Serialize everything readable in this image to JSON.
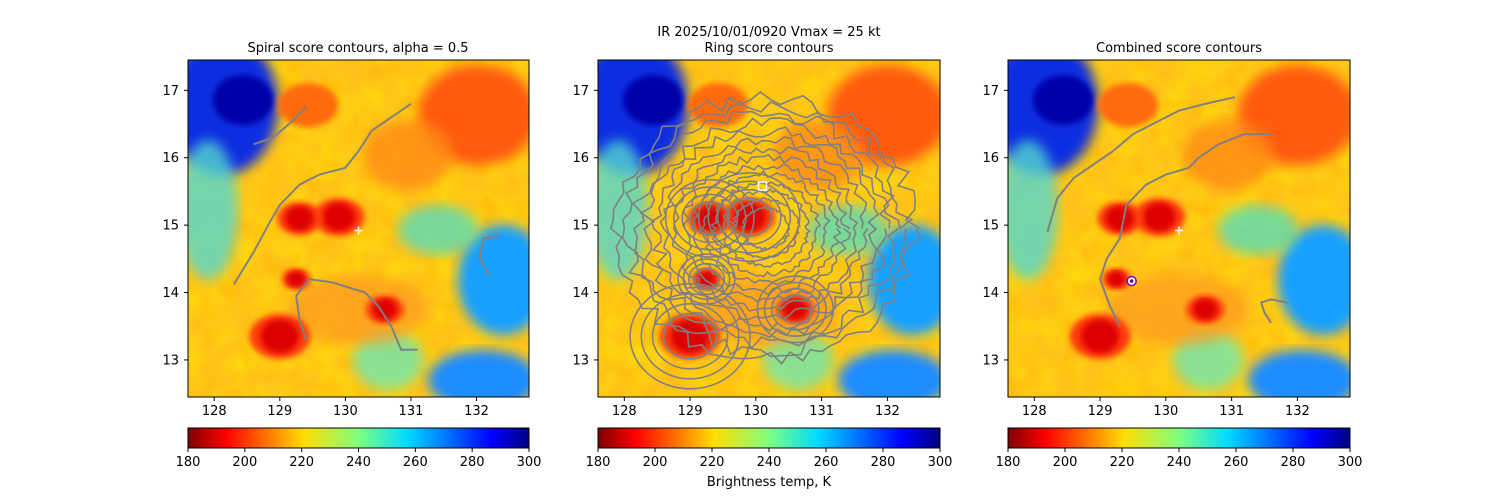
{
  "figure": {
    "suptitle": "IR  2025/10/01/0920    Vmax = 25 kt",
    "colorbar_label": "Brightness temp, K"
  },
  "chart_data": [
    {
      "type": "heatmap",
      "title": "Spiral score contours, alpha =  0.5",
      "x_ticks": [
        128,
        129,
        130,
        131,
        132
      ],
      "y_ticks": [
        13,
        14,
        15,
        16,
        17
      ],
      "xlim": [
        127.6,
        132.8
      ],
      "ylim": [
        12.45,
        17.45
      ],
      "marker": {
        "kind": "plus",
        "lon": 130.2,
        "lat": 14.92
      },
      "contours": [
        [
          [
            128.6,
            16.2
          ],
          [
            128.9,
            16.3
          ],
          [
            129.2,
            16.55
          ],
          [
            129.4,
            16.75
          ]
        ],
        [
          [
            128.3,
            14.12
          ],
          [
            128.6,
            14.6
          ],
          [
            128.85,
            15.05
          ],
          [
            129.0,
            15.3
          ],
          [
            129.3,
            15.6
          ],
          [
            129.6,
            15.75
          ],
          [
            130.0,
            15.85
          ],
          [
            130.2,
            16.1
          ],
          [
            130.4,
            16.4
          ],
          [
            130.7,
            16.6
          ],
          [
            131.0,
            16.8
          ]
        ],
        [
          [
            129.4,
            13.3
          ],
          [
            129.3,
            13.6
          ],
          [
            129.25,
            13.95
          ],
          [
            129.45,
            14.2
          ],
          [
            129.8,
            14.15
          ],
          [
            130.3,
            14.0
          ],
          [
            130.5,
            13.8
          ],
          [
            130.7,
            13.5
          ],
          [
            130.85,
            13.15
          ],
          [
            131.1,
            13.15
          ]
        ],
        [
          [
            132.35,
            14.85
          ],
          [
            132.1,
            14.8
          ],
          [
            132.05,
            14.5
          ],
          [
            132.2,
            14.25
          ]
        ]
      ],
      "cold_cores": [
        {
          "lon": 129.9,
          "lat": 15.12,
          "size": 0.32
        },
        {
          "lon": 129.3,
          "lat": 15.1,
          "size": 0.28
        },
        {
          "lon": 130.6,
          "lat": 13.75,
          "size": 0.24
        },
        {
          "lon": 129.0,
          "lat": 13.35,
          "size": 0.38
        },
        {
          "lon": 129.25,
          "lat": 14.2,
          "size": 0.18
        }
      ]
    },
    {
      "type": "heatmap",
      "title": "Ring score contours",
      "x_ticks": [
        128,
        129,
        130,
        131,
        132
      ],
      "y_ticks": [
        13,
        14,
        15,
        16,
        17
      ],
      "xlim": [
        127.6,
        132.8
      ],
      "ylim": [
        12.45,
        17.45
      ],
      "marker": {
        "kind": "square",
        "lon": 130.1,
        "lat": 15.58
      },
      "ring": {
        "lon": 130.15,
        "lat": 14.95,
        "r_lon": 2.25,
        "r_lat": 1.95
      },
      "cold_cores": [
        {
          "lon": 129.9,
          "lat": 15.12,
          "size": 0.32
        },
        {
          "lon": 129.3,
          "lat": 15.1,
          "size": 0.28
        },
        {
          "lon": 130.6,
          "lat": 13.75,
          "size": 0.24
        },
        {
          "lon": 129.0,
          "lat": 13.35,
          "size": 0.38
        },
        {
          "lon": 129.25,
          "lat": 14.2,
          "size": 0.18
        }
      ]
    },
    {
      "type": "heatmap",
      "title": "Combined score contours",
      "x_ticks": [
        128,
        129,
        130,
        131,
        132
      ],
      "y_ticks": [
        13,
        14,
        15,
        16,
        17
      ],
      "xlim": [
        127.6,
        132.8
      ],
      "ylim": [
        12.45,
        17.45
      ],
      "marker": {
        "kind": "plus",
        "lon": 130.2,
        "lat": 14.92
      },
      "marker2": {
        "kind": "circle",
        "lon": 129.48,
        "lat": 14.17
      },
      "contours": [
        [
          [
            128.2,
            14.9
          ],
          [
            128.35,
            15.4
          ],
          [
            128.6,
            15.7
          ],
          [
            128.9,
            15.9
          ],
          [
            129.2,
            16.1
          ],
          [
            129.5,
            16.35
          ],
          [
            129.8,
            16.5
          ],
          [
            130.2,
            16.7
          ],
          [
            130.6,
            16.8
          ],
          [
            131.05,
            16.9
          ]
        ],
        [
          [
            129.3,
            13.5
          ],
          [
            129.15,
            13.8
          ],
          [
            129.0,
            14.2
          ],
          [
            129.1,
            14.5
          ],
          [
            129.3,
            14.8
          ],
          [
            129.4,
            15.3
          ],
          [
            129.7,
            15.6
          ],
          [
            130.0,
            15.75
          ],
          [
            130.35,
            15.85
          ],
          [
            130.5,
            16.0
          ],
          [
            130.8,
            16.2
          ],
          [
            131.2,
            16.35
          ],
          [
            131.6,
            16.35
          ]
        ],
        [
          [
            131.6,
            13.55
          ],
          [
            131.5,
            13.7
          ],
          [
            131.45,
            13.85
          ],
          [
            131.6,
            13.9
          ],
          [
            131.85,
            13.85
          ]
        ]
      ],
      "cold_cores": [
        {
          "lon": 129.9,
          "lat": 15.12,
          "size": 0.32
        },
        {
          "lon": 129.3,
          "lat": 15.1,
          "size": 0.28
        },
        {
          "lon": 130.6,
          "lat": 13.75,
          "size": 0.24
        },
        {
          "lon": 129.0,
          "lat": 13.35,
          "size": 0.38
        },
        {
          "lon": 129.25,
          "lat": 14.2,
          "size": 0.18
        }
      ]
    }
  ],
  "colorbar": {
    "min": 180,
    "max": 300,
    "ticks": [
      180,
      200,
      220,
      240,
      260,
      280,
      300
    ]
  }
}
